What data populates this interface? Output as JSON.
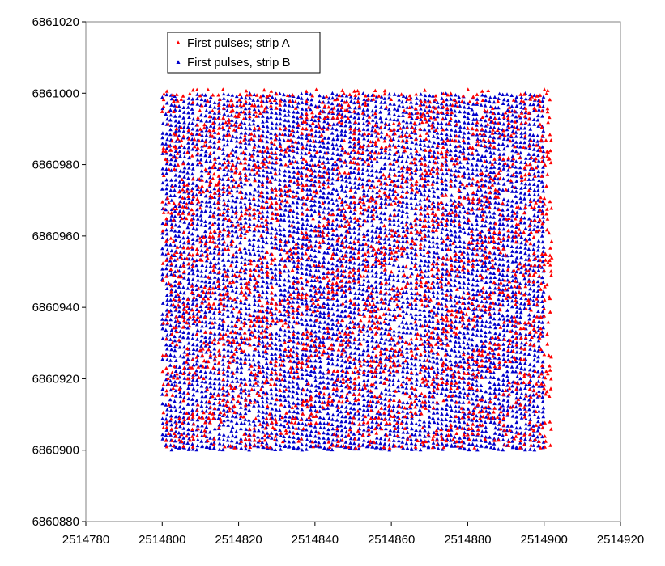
{
  "chart_data": {
    "type": "scatter",
    "title": "",
    "xlabel": "",
    "ylabel": "",
    "xlim": [
      2514780,
      2514920
    ],
    "ylim": [
      6860880,
      6861020
    ],
    "x_ticks": [
      2514780,
      2514800,
      2514820,
      2514840,
      2514860,
      2514880,
      2514900,
      2514920
    ],
    "y_ticks": [
      6860880,
      6860900,
      6860920,
      6860940,
      6860960,
      6860980,
      6861000,
      6861020
    ],
    "grid": false,
    "legend_position": "top-left",
    "marker": "triangle",
    "series": [
      {
        "name": "First pulses; strip A",
        "color": "#ff0000",
        "extent_x": [
          2514800,
          2514902
        ],
        "extent_y": [
          6860900,
          6861001
        ]
      },
      {
        "name": "First pulses, strip B",
        "color": "#0000cc",
        "extent_x": [
          2514800,
          2514900
        ],
        "extent_y": [
          6860900,
          6861000
        ]
      }
    ]
  }
}
